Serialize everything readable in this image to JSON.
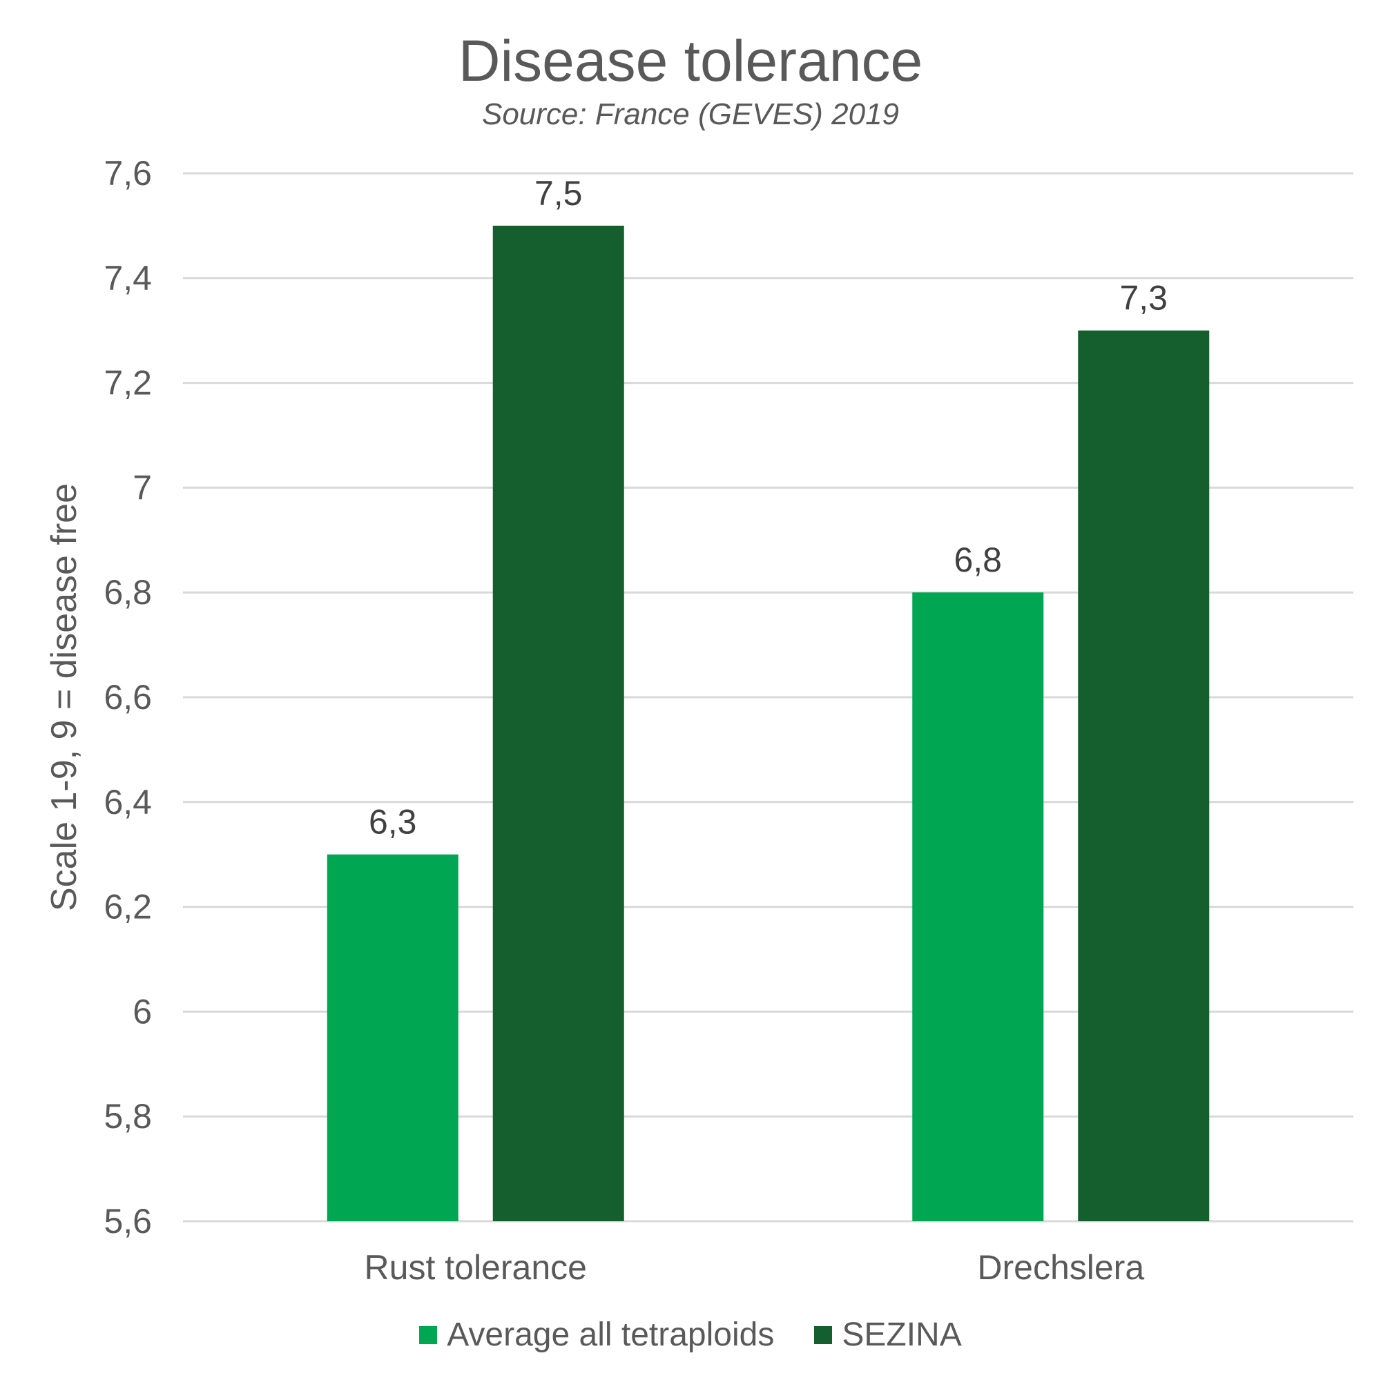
{
  "chart_data": {
    "type": "bar",
    "title": "Disease tolerance",
    "subtitle": "Source: France (GEVES) 2019",
    "xlabel": "",
    "ylabel": "Scale 1-9, 9 = disease free",
    "categories": [
      "Rust tolerance",
      "Drechslera"
    ],
    "series": [
      {
        "name": "Average all tetraploids",
        "color": "#00A651",
        "values": [
          6.3,
          6.8
        ],
        "labels": [
          "6,3",
          "6,8"
        ]
      },
      {
        "name": "SEZINA",
        "color": "#155F2E",
        "values": [
          7.5,
          7.3
        ],
        "labels": [
          "7,5",
          "7,3"
        ]
      }
    ],
    "ylim": [
      5.6,
      7.6
    ],
    "yticks": [
      5.6,
      5.8,
      6.0,
      6.2,
      6.4,
      6.6,
      6.8,
      7.0,
      7.2,
      7.4,
      7.6
    ],
    "ytick_labels": [
      "5,6",
      "5,8",
      "6",
      "6,2",
      "6,4",
      "6,6",
      "6,8",
      "7",
      "7,2",
      "7,4",
      "7,6"
    ],
    "grid": true,
    "legend_position": "bottom"
  }
}
